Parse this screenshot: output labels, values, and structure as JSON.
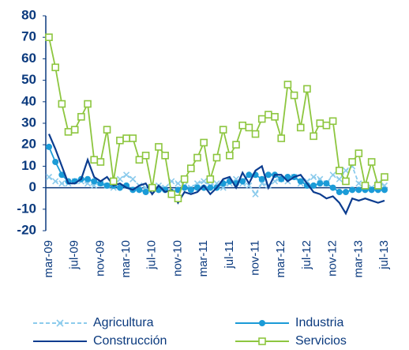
{
  "chart_data": {
    "type": "line",
    "categories": [
      "mar-09",
      null,
      null,
      null,
      "jul-09",
      null,
      null,
      null,
      "nov-09",
      null,
      null,
      null,
      "mar-10",
      null,
      null,
      null,
      "jul-10",
      null,
      null,
      null,
      "nov-10",
      null,
      null,
      null,
      "mar-11",
      null,
      null,
      null,
      "jul-11",
      null,
      null,
      null,
      "nov-11",
      null,
      null,
      null,
      "mar-12",
      null,
      null,
      null,
      "jul-12",
      null,
      null,
      null,
      "nov-12",
      null,
      null,
      null,
      "mar-13",
      null,
      null,
      null,
      "jul-13"
    ],
    "ylim": [
      -20,
      80
    ],
    "yticks": [
      -20,
      -10,
      0,
      10,
      20,
      30,
      40,
      50,
      60,
      70,
      80
    ],
    "series": [
      {
        "name": "Agricultura",
        "color": "#8ccbec",
        "dashed": true,
        "marker": "x",
        "values": [
          5,
          3,
          2,
          2,
          3,
          3,
          2,
          1,
          2,
          1,
          0,
          4,
          6,
          4,
          1,
          0,
          -1,
          1,
          0,
          3,
          2,
          1,
          0,
          2,
          3,
          1,
          2,
          0,
          2,
          4,
          2,
          1,
          -3,
          2,
          1,
          3,
          4,
          3,
          5,
          2,
          3,
          5,
          4,
          2,
          6,
          4,
          8,
          10,
          2,
          1,
          0,
          2,
          1
        ]
      },
      {
        "name": "Industria",
        "color": "#1b9bd7",
        "dashed": false,
        "marker": "circle",
        "values": [
          19,
          12,
          6,
          3,
          3,
          4,
          4,
          3,
          2,
          1,
          1,
          0,
          1,
          -1,
          -1,
          -2,
          0,
          -1,
          -1,
          -2,
          -1,
          0,
          -1,
          0,
          0,
          0,
          0,
          2,
          3,
          2,
          3,
          6,
          6,
          4,
          6,
          6,
          4,
          5,
          5,
          3,
          1,
          1,
          2,
          2,
          0,
          -2,
          -2,
          -1,
          -1,
          -1,
          -1,
          -1,
          -1
        ]
      },
      {
        "name": "Construcción",
        "color": "#0b3c8f",
        "dashed": false,
        "marker": "none",
        "values": [
          25,
          18,
          10,
          2,
          2,
          4,
          13,
          5,
          3,
          5,
          1,
          2,
          0,
          -1,
          1,
          2,
          -3,
          1,
          -2,
          -1,
          -7,
          -2,
          -3,
          -2,
          1,
          -3,
          0,
          4,
          5,
          0,
          7,
          2,
          8,
          10,
          0,
          6,
          6,
          3,
          5,
          6,
          2,
          -2,
          -3,
          -5,
          -4,
          -7,
          -12,
          -5,
          -6,
          -5,
          -6,
          -7,
          -6
        ]
      },
      {
        "name": "Servicios",
        "color": "#8dc63f",
        "dashed": false,
        "marker": "square",
        "values": [
          70,
          56,
          39,
          26,
          27,
          33,
          39,
          13,
          12,
          27,
          3,
          22,
          23,
          23,
          13,
          15,
          0,
          19,
          15,
          -3,
          -5,
          4,
          9,
          14,
          21,
          4,
          14,
          27,
          15,
          20,
          29,
          28,
          25,
          32,
          34,
          33,
          23,
          48,
          43,
          28,
          46,
          24,
          30,
          29,
          31,
          8,
          3,
          12,
          16,
          1,
          12,
          1,
          5
        ]
      }
    ]
  }
}
